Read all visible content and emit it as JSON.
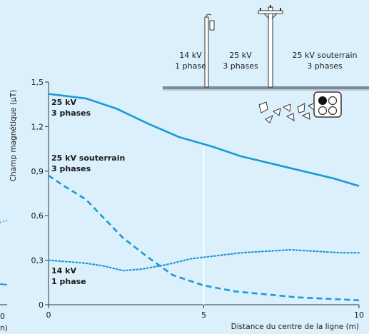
{
  "chart_data": {
    "type": "line",
    "title": "",
    "xlabel": "Distance du centre de la ligne (m)",
    "ylabel": "Champ magnétique (μT)",
    "xlim": [
      0,
      10
    ],
    "ylim": [
      0,
      1.5
    ],
    "x_ticks": [
      "0",
      "5",
      "10"
    ],
    "y_ticks": [
      "0",
      "0,3",
      "0,6",
      "0,9",
      "1,2",
      "1,5"
    ],
    "grid": false,
    "marker_line_x": 5,
    "line_color": "#1a9ad6",
    "series": [
      {
        "name": "25 kV 3 phases",
        "label_lines": [
          "25 kV",
          "3 phases"
        ],
        "style": "solid",
        "x": [
          0,
          1.2,
          2.2,
          3.2,
          4.2,
          5.2,
          6.2,
          7.2,
          8.2,
          9.2,
          10
        ],
        "y": [
          1.42,
          1.39,
          1.32,
          1.22,
          1.13,
          1.07,
          1.0,
          0.95,
          0.9,
          0.85,
          0.8
        ]
      },
      {
        "name": "25 kV souterrain 3 phases",
        "label_lines": [
          "25 kV souterrain",
          "3 phases"
        ],
        "style": "dashed",
        "x": [
          0,
          0.5,
          1.2,
          1.8,
          2.4,
          3.2,
          4.0,
          5.0,
          6.0,
          7.0,
          8.0,
          9.0,
          10
        ],
        "y": [
          0.87,
          0.8,
          0.71,
          0.58,
          0.45,
          0.32,
          0.2,
          0.13,
          0.09,
          0.07,
          0.05,
          0.04,
          0.03
        ]
      },
      {
        "name": "14 kV 1 phase",
        "label_lines": [
          "14 kV",
          "1 phase"
        ],
        "style": "dotted",
        "x": [
          0,
          0.6,
          1.2,
          1.8,
          2.4,
          3.0,
          3.8,
          4.6,
          5.4,
          6.2,
          7.0,
          7.8,
          8.6,
          9.4,
          10
        ],
        "y": [
          0.3,
          0.29,
          0.28,
          0.26,
          0.23,
          0.24,
          0.27,
          0.31,
          0.33,
          0.35,
          0.36,
          0.37,
          0.36,
          0.35,
          0.35
        ]
      }
    ]
  },
  "illustration": {
    "labels": [
      {
        "name": "14kv-1-phase",
        "lines": [
          "14 kV",
          "1 phase"
        ]
      },
      {
        "name": "25kv-3-phases",
        "lines": [
          "25 kV",
          "3 phases"
        ]
      },
      {
        "name": "25kv-underground-3-phases",
        "lines": [
          "25 kV souterrain",
          "3 phases"
        ]
      }
    ]
  },
  "left_panel_fragment": {
    "tick_zero": "0",
    "axis_fragment": "n)"
  }
}
